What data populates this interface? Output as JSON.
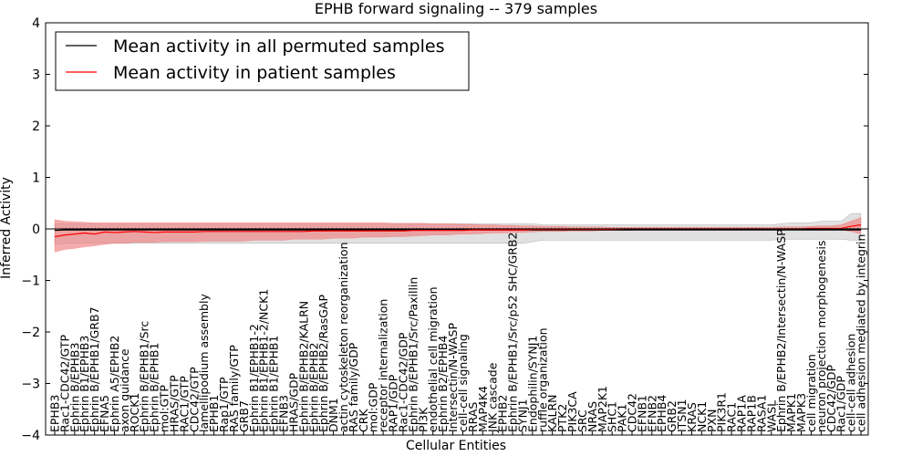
{
  "chart_data": {
    "type": "line",
    "title": "EPHB forward signaling -- 379 samples",
    "xlabel": "Cellular Entities",
    "ylabel": "Inferred Activity",
    "ylim": [
      -4,
      4
    ],
    "yticks": [
      4,
      3,
      2,
      1,
      0,
      -1,
      -2,
      -3,
      -4
    ],
    "ytick_labels": [
      "4",
      "3",
      "2",
      "1",
      "0",
      "−1",
      "−2",
      "−3",
      "−4"
    ],
    "legend_position": "top-left",
    "grid": false,
    "categories": [
      "EPHB3",
      "Rac1-CDC42/GTP",
      "Ephrin B/EPHB3",
      "Ephrin B1/EPHB3",
      "Ephrin B/EPHB1/GRB7",
      "EFNA5",
      "Ephrin A5/EPHB2",
      "axon guidance",
      "ROCK1",
      "Ephrin B/EPHB1/Src",
      "Ephrin B/EPHB1",
      "mol:GTP",
      "HRAS/GTP",
      "RAC1/GTP",
      "CDC42/GTP",
      "lamellipodium assembly",
      "EPHB1",
      "Rap1/GTP",
      "RAS family/GTP",
      "GRB7",
      "Ephrin B1/EPHB1-2",
      "Ephrin B1/EPHB1-2/NCK1",
      "Ephrin B1/EPHB1",
      "EFNB3",
      "HRAS/GDP",
      "Ephrin B/EPHB2/KALRN",
      "Ephrin B/EPHB2",
      "Ephrin B/EPHB2/RasGAP",
      "DNM1",
      "actin cytoskeleton reorganization",
      "RAS family/GDP",
      "CRK",
      "mol:GDP",
      "receptor internalization",
      "RAP1/GDP",
      "Rac1-CDC42/GDP",
      "Ephrin B/EPHB1/Src/Paxillin",
      "PI3K",
      "endothelial cell migration",
      "Ephrin B2/EPHB4",
      "Intersectin/N-WASP",
      "cell-cell signaling",
      "RRAS",
      "MAP4K4",
      "JNK cascade",
      "EPHB2",
      "Ephrin B/EPHB1/Src/p52 SHC/GRB2",
      "SYNJ1",
      "Endophilin/SYNJ1",
      "ruffle organization",
      "KALRN",
      "PTK2",
      "PIK3CA",
      "SRC",
      "NRAS",
      "MAP2K1",
      "SHC1",
      "PAK1",
      "CDC42",
      "EFNB1",
      "EFNB2",
      "EPHB4",
      "GRB2",
      "ITSN1",
      "KRAS",
      "NCK1",
      "PXN",
      "PIK3R1",
      "RAC1",
      "RAP1A",
      "RAP1B",
      "RASA1",
      "WASL",
      "Ephrin B/EPHB2/Intersectin/N-WASP",
      "MAPK1",
      "MAPK3",
      "cell migration",
      "neuron projection morphogenesis",
      "CDC42/GDP",
      "Rac1/GDP",
      "cell-cell adhesion",
      "cell adhesion mediated by integrin"
    ],
    "series": [
      {
        "name": "Mean activity in all permuted samples",
        "color": "#000000",
        "dotted_color": "#000000",
        "band_color": "#c8c8c8",
        "values": [
          -0.03,
          -0.02,
          -0.02,
          -0.02,
          -0.02,
          -0.02,
          -0.02,
          -0.02,
          -0.02,
          -0.02,
          -0.02,
          -0.02,
          -0.02,
          -0.02,
          -0.02,
          -0.02,
          -0.02,
          -0.02,
          -0.02,
          -0.02,
          -0.02,
          -0.02,
          -0.02,
          -0.02,
          -0.02,
          -0.02,
          -0.02,
          -0.02,
          -0.02,
          -0.02,
          -0.02,
          -0.02,
          -0.02,
          -0.02,
          -0.02,
          -0.02,
          -0.02,
          -0.02,
          -0.02,
          -0.02,
          -0.02,
          -0.02,
          -0.02,
          -0.02,
          -0.02,
          -0.02,
          -0.02,
          -0.02,
          -0.02,
          -0.02,
          -0.02,
          -0.02,
          -0.02,
          -0.02,
          -0.02,
          -0.02,
          -0.02,
          -0.02,
          -0.02,
          -0.02,
          -0.02,
          -0.02,
          -0.02,
          -0.02,
          -0.02,
          -0.02,
          -0.02,
          -0.02,
          -0.02,
          -0.02,
          -0.02,
          -0.02,
          -0.02,
          -0.02,
          -0.02,
          -0.02,
          -0.02,
          -0.02,
          -0.02,
          -0.02,
          -0.02,
          -0.02
        ],
        "lower": [
          -0.3,
          -0.28,
          -0.28,
          -0.28,
          -0.28,
          -0.28,
          -0.28,
          -0.28,
          -0.28,
          -0.28,
          -0.28,
          -0.28,
          -0.28,
          -0.28,
          -0.28,
          -0.28,
          -0.28,
          -0.28,
          -0.28,
          -0.28,
          -0.28,
          -0.28,
          -0.28,
          -0.28,
          -0.28,
          -0.28,
          -0.28,
          -0.28,
          -0.28,
          -0.28,
          -0.28,
          -0.28,
          -0.28,
          -0.28,
          -0.28,
          -0.28,
          -0.28,
          -0.28,
          -0.28,
          -0.28,
          -0.28,
          -0.28,
          -0.28,
          -0.28,
          -0.28,
          -0.28,
          -0.28,
          -0.28,
          -0.25,
          -0.22,
          -0.22,
          -0.22,
          -0.22,
          -0.22,
          -0.22,
          -0.22,
          -0.22,
          -0.22,
          -0.22,
          -0.22,
          -0.22,
          -0.22,
          -0.22,
          -0.22,
          -0.22,
          -0.22,
          -0.22,
          -0.22,
          -0.22,
          -0.22,
          -0.22,
          -0.22,
          -0.22,
          -0.2,
          -0.2,
          -0.2,
          -0.2,
          -0.2,
          -0.2,
          -0.2,
          -0.22,
          -0.22
        ],
        "upper": [
          0.1,
          0.1,
          0.1,
          0.1,
          0.1,
          0.1,
          0.1,
          0.1,
          0.1,
          0.1,
          0.1,
          0.1,
          0.1,
          0.1,
          0.1,
          0.1,
          0.1,
          0.1,
          0.1,
          0.1,
          0.1,
          0.1,
          0.1,
          0.1,
          0.1,
          0.1,
          0.1,
          0.1,
          0.1,
          0.1,
          0.1,
          0.1,
          0.1,
          0.1,
          0.1,
          0.1,
          0.1,
          0.1,
          0.1,
          0.1,
          0.1,
          0.1,
          0.1,
          0.1,
          0.1,
          0.1,
          0.1,
          0.1,
          0.1,
          0.08,
          0.08,
          0.08,
          0.08,
          0.08,
          0.08,
          0.08,
          0.08,
          0.08,
          0.08,
          0.08,
          0.08,
          0.08,
          0.08,
          0.08,
          0.08,
          0.08,
          0.08,
          0.08,
          0.08,
          0.08,
          0.08,
          0.08,
          0.08,
          0.1,
          0.12,
          0.12,
          0.12,
          0.15,
          0.15,
          0.15,
          0.3,
          0.3
        ]
      },
      {
        "name": "Mean activity in patient samples",
        "color": "#ff0000",
        "band_color": "#f08080",
        "values": [
          -0.15,
          -0.12,
          -0.1,
          -0.08,
          -0.1,
          -0.06,
          -0.07,
          -0.06,
          -0.05,
          -0.06,
          -0.07,
          -0.06,
          -0.06,
          -0.06,
          -0.06,
          -0.05,
          -0.05,
          -0.05,
          -0.05,
          -0.05,
          -0.05,
          -0.05,
          -0.05,
          -0.05,
          -0.05,
          -0.05,
          -0.04,
          -0.04,
          -0.04,
          -0.04,
          -0.04,
          -0.04,
          -0.04,
          -0.04,
          -0.04,
          -0.04,
          -0.03,
          -0.03,
          -0.03,
          -0.03,
          -0.03,
          -0.03,
          -0.02,
          -0.02,
          -0.02,
          -0.02,
          -0.02,
          -0.02,
          -0.01,
          -0.01,
          -0.01,
          -0.01,
          -0.01,
          -0.01,
          -0.01,
          -0.01,
          -0.01,
          0,
          0,
          0,
          0,
          0,
          0,
          0,
          0,
          0,
          0,
          0,
          0,
          0,
          0,
          0,
          0,
          0,
          0,
          0,
          0.01,
          0.01,
          0.01,
          0.01,
          0.05,
          0.08
        ],
        "lower": [
          -0.45,
          -0.4,
          -0.38,
          -0.35,
          -0.33,
          -0.3,
          -0.28,
          -0.28,
          -0.26,
          -0.26,
          -0.26,
          -0.25,
          -0.25,
          -0.25,
          -0.25,
          -0.24,
          -0.24,
          -0.24,
          -0.24,
          -0.24,
          -0.22,
          -0.22,
          -0.22,
          -0.22,
          -0.2,
          -0.2,
          -0.2,
          -0.2,
          -0.18,
          -0.18,
          -0.18,
          -0.16,
          -0.16,
          -0.16,
          -0.15,
          -0.15,
          -0.14,
          -0.13,
          -0.12,
          -0.12,
          -0.11,
          -0.1,
          -0.1,
          -0.09,
          -0.08,
          -0.08,
          -0.07,
          -0.07,
          -0.06,
          -0.05,
          -0.05,
          -0.05,
          -0.04,
          -0.04,
          -0.04,
          -0.03,
          -0.03,
          -0.03,
          -0.03,
          -0.02,
          -0.02,
          -0.02,
          -0.02,
          -0.02,
          -0.02,
          -0.02,
          -0.02,
          -0.02,
          -0.02,
          -0.02,
          -0.02,
          -0.02,
          -0.02,
          -0.02,
          -0.02,
          -0.02,
          -0.02,
          -0.02,
          -0.02,
          -0.02,
          -0.05,
          -0.1
        ],
        "upper": [
          0.18,
          0.15,
          0.14,
          0.13,
          0.12,
          0.12,
          0.12,
          0.12,
          0.12,
          0.12,
          0.12,
          0.12,
          0.12,
          0.12,
          0.12,
          0.12,
          0.12,
          0.12,
          0.12,
          0.12,
          0.12,
          0.12,
          0.12,
          0.12,
          0.12,
          0.12,
          0.12,
          0.12,
          0.12,
          0.12,
          0.12,
          0.12,
          0.12,
          0.12,
          0.11,
          0.11,
          0.11,
          0.11,
          0.1,
          0.1,
          0.1,
          0.09,
          0.09,
          0.08,
          0.08,
          0.07,
          0.07,
          0.06,
          0.06,
          0.05,
          0.05,
          0.05,
          0.04,
          0.04,
          0.04,
          0.04,
          0.03,
          0.03,
          0.03,
          0.03,
          0.03,
          0.03,
          0.03,
          0.03,
          0.03,
          0.03,
          0.03,
          0.03,
          0.03,
          0.03,
          0.03,
          0.03,
          0.03,
          0.04,
          0.04,
          0.04,
          0.05,
          0.06,
          0.06,
          0.08,
          0.15,
          0.22
        ]
      }
    ]
  }
}
